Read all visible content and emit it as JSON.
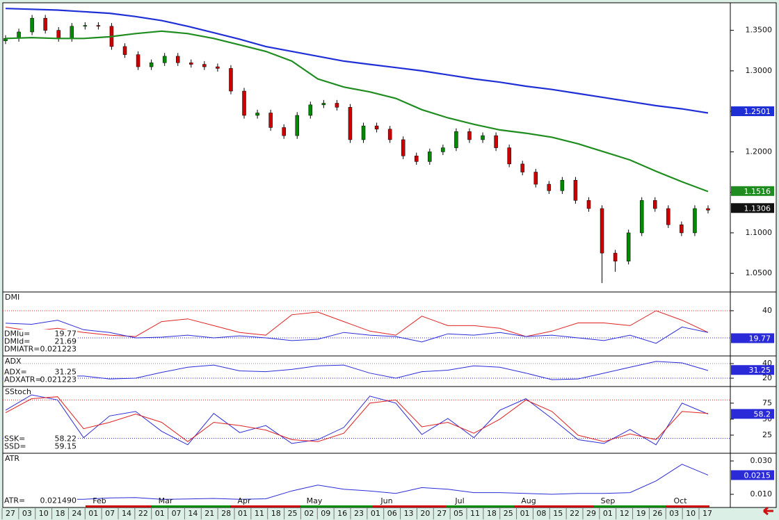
{
  "chart_data": [
    {
      "type": "candlestick",
      "open": [
        1.337,
        1.34,
        1.348,
        1.365,
        1.35,
        1.34,
        1.355,
        1.356,
        1.355,
        1.33,
        1.32,
        1.305,
        1.31,
        1.318,
        1.31,
        1.308,
        1.305,
        1.303,
        1.275,
        1.245,
        1.248,
        1.23,
        1.22,
        1.245,
        1.258,
        1.26,
        1.255,
        1.215,
        1.232,
        1.228,
        1.215,
        1.195,
        1.188,
        1.2,
        1.205,
        1.225,
        1.215,
        1.22,
        1.205,
        1.185,
        1.175,
        1.16,
        1.152,
        1.165,
        1.14,
        1.13,
        1.075,
        1.065,
        1.1,
        1.14,
        1.13,
        1.11,
        1.1,
        1.13
      ],
      "high": [
        1.344,
        1.352,
        1.369,
        1.369,
        1.354,
        1.359,
        1.36,
        1.36,
        1.359,
        1.334,
        1.324,
        1.314,
        1.322,
        1.322,
        1.314,
        1.312,
        1.309,
        1.307,
        1.279,
        1.252,
        1.252,
        1.234,
        1.249,
        1.262,
        1.264,
        1.264,
        1.259,
        1.236,
        1.236,
        1.232,
        1.219,
        1.199,
        1.204,
        1.209,
        1.229,
        1.229,
        1.224,
        1.224,
        1.209,
        1.189,
        1.179,
        1.164,
        1.169,
        1.169,
        1.144,
        1.134,
        1.079,
        1.104,
        1.144,
        1.144,
        1.134,
        1.114,
        1.134,
        1.134
      ],
      "low": [
        1.333,
        1.336,
        1.344,
        1.346,
        1.336,
        1.336,
        1.351,
        1.351,
        1.326,
        1.316,
        1.301,
        1.301,
        1.306,
        1.306,
        1.304,
        1.301,
        1.299,
        1.271,
        1.241,
        1.241,
        1.226,
        1.216,
        1.216,
        1.241,
        1.254,
        1.251,
        1.211,
        1.211,
        1.224,
        1.211,
        1.191,
        1.184,
        1.184,
        1.196,
        1.201,
        1.211,
        1.211,
        1.201,
        1.181,
        1.171,
        1.156,
        1.148,
        1.148,
        1.136,
        1.126,
        1.038,
        1.052,
        1.061,
        1.096,
        1.126,
        1.106,
        1.096,
        1.096,
        1.124
      ],
      "close": [
        1.34,
        1.348,
        1.365,
        1.35,
        1.34,
        1.355,
        1.356,
        1.355,
        1.33,
        1.32,
        1.305,
        1.31,
        1.318,
        1.31,
        1.308,
        1.305,
        1.303,
        1.275,
        1.245,
        1.248,
        1.23,
        1.22,
        1.245,
        1.258,
        1.26,
        1.255,
        1.215,
        1.232,
        1.228,
        1.215,
        1.195,
        1.188,
        1.2,
        1.205,
        1.225,
        1.215,
        1.22,
        1.205,
        1.185,
        1.175,
        1.16,
        1.152,
        1.165,
        1.14,
        1.13,
        1.075,
        1.065,
        1.1,
        1.14,
        1.13,
        1.11,
        1.1,
        1.13,
        1.128
      ],
      "up_color": "#008a00",
      "down_color": "#cc0000",
      "lines": [
        {
          "color": "#1f2fd6",
          "values": [
            1.377,
            1.376,
            1.375,
            1.373,
            1.371,
            1.367,
            1.362,
            1.355,
            1.347,
            1.339,
            1.33,
            1.324,
            1.318,
            1.312,
            1.308,
            1.304,
            1.3,
            1.295,
            1.29,
            1.286,
            1.281,
            1.277,
            1.272,
            1.267,
            1.262,
            1.257,
            1.253,
            1.248
          ]
        },
        {
          "color": "#1e8c1e",
          "values": [
            1.34,
            1.341,
            1.34,
            1.34,
            1.342,
            1.346,
            1.349,
            1.346,
            1.34,
            1.332,
            1.324,
            1.312,
            1.29,
            1.28,
            1.274,
            1.266,
            1.252,
            1.242,
            1.234,
            1.227,
            1.223,
            1.218,
            1.21,
            1.2,
            1.19,
            1.176,
            1.163,
            1.151
          ]
        }
      ],
      "markers": [
        {
          "value": 1.2501,
          "color": "#1f2fd6"
        },
        {
          "value": 1.1516,
          "color": "#1e8c1e"
        },
        {
          "value": 1.1306,
          "color": "#111111"
        }
      ],
      "ylim": [
        1.027,
        1.384
      ],
      "yticks": [
        {
          "value": 1.05,
          "label": "1.0500"
        },
        {
          "value": 1.1,
          "label": "1.1000"
        },
        {
          "value": 1.15,
          "label": "1.1500"
        },
        {
          "value": 1.2,
          "label": "1.2000"
        },
        {
          "value": 1.25,
          "label": "1.2500"
        },
        {
          "value": 1.3,
          "label": "1.3000"
        },
        {
          "value": 1.35,
          "label": "1.3500"
        }
      ]
    },
    {
      "type": "line",
      "title": "DMI",
      "series": [
        {
          "color": "#e02020",
          "values": [
            28,
            25,
            27,
            24,
            22,
            21,
            32,
            34,
            29,
            24,
            22,
            37,
            39,
            32,
            25,
            22,
            36,
            29,
            29,
            27,
            21,
            25,
            31,
            31,
            29,
            40,
            33,
            24
          ]
        },
        {
          "color": "#2a2ad8",
          "values": [
            30.8,
            30,
            33,
            26,
            24,
            20,
            20.5,
            22,
            20,
            21.5,
            20,
            18,
            19,
            24,
            22,
            21,
            17,
            23,
            22,
            24,
            21,
            22,
            20,
            18,
            22,
            16,
            28,
            24
          ]
        }
      ],
      "ylim": [
        6.7,
        53.8
      ],
      "yticks": [
        40
      ],
      "levels": [
        {
          "value": 40,
          "color": "#e02020"
        },
        {
          "value": 20,
          "color": "#2a2ad8"
        }
      ],
      "readouts": [
        {
          "name": "DMIu=",
          "value": 19.77
        },
        {
          "name": "DMId=",
          "value": 21.69
        },
        {
          "name": "DMIATR=",
          "value": 0.021223
        }
      ],
      "marker": {
        "value": 19.77,
        "color": "#2a2ad8"
      }
    },
    {
      "type": "line",
      "title": "ADX",
      "series": [
        {
          "color": "#2a2ad8",
          "values": [
            24,
            24,
            23,
            23,
            19,
            20,
            28,
            35,
            38,
            30,
            29,
            32,
            37,
            38,
            27,
            20,
            29,
            31,
            37,
            35,
            27,
            18,
            19,
            27,
            35,
            43,
            41,
            30.5
          ]
        }
      ],
      "ylim": [
        8.6,
        50.5
      ],
      "yticks": [
        20,
        40
      ],
      "levels": [
        {
          "value": 40,
          "color": "#888888"
        },
        {
          "value": 20,
          "color": "#2a2ad8"
        }
      ],
      "readouts": [
        {
          "name": "ADX=",
          "value": 31.25
        },
        {
          "name": "ADXATR=",
          "value": 0.021223
        }
      ],
      "marker": {
        "value": 31.25,
        "color": "#2a2ad8"
      }
    },
    {
      "type": "line",
      "title": "SStoch",
      "series": [
        {
          "color": "#2a2ad8",
          "values": [
            64,
            88,
            80,
            21,
            55,
            62,
            31,
            10,
            59,
            29,
            40,
            12,
            18,
            37,
            86,
            75,
            26,
            51,
            21,
            64,
            82,
            51,
            18,
            12,
            34,
            10,
            75,
            58
          ]
        },
        {
          "color": "#e02020",
          "values": [
            60,
            82,
            85,
            35,
            45,
            58,
            45,
            15,
            45,
            40,
            33,
            18,
            15,
            28,
            75,
            80,
            38,
            45,
            28,
            50,
            80,
            62,
            25,
            15,
            27,
            18,
            62,
            59
          ]
        }
      ],
      "ylim": [
        -3.3,
        101
      ],
      "yticks": [
        25,
        50,
        75
      ],
      "levels": [
        {
          "value": 80,
          "color": "#e02020"
        },
        {
          "value": 20,
          "color": "#2a2ad8"
        }
      ],
      "readouts": [
        {
          "name": "SSK=",
          "value": 58.22
        },
        {
          "name": "SSD=",
          "value": 59.15
        }
      ],
      "marker": {
        "value": 58.2,
        "color": "#2a2ad8"
      }
    },
    {
      "type": "line",
      "title": "ATR",
      "series": [
        {
          "color": "#2a2ad8",
          "values": [
            0.0075,
            0.0075,
            0.007,
            0.007,
            0.0078,
            0.008,
            0.007,
            0.0072,
            0.0075,
            0.007,
            0.0073,
            0.012,
            0.0155,
            0.013,
            0.012,
            0.0105,
            0.014,
            0.013,
            0.011,
            0.011,
            0.0105,
            0.01,
            0.0105,
            0.0105,
            0.011,
            0.018,
            0.028,
            0.0215
          ]
        }
      ],
      "ylim": [
        0.0021,
        0.0346
      ],
      "yticks": [
        {
          "value": 0.01,
          "label": "0.010"
        },
        {
          "value": 0.03,
          "label": "0.030"
        }
      ],
      "levels": [],
      "readouts": [
        {
          "name": "ATR=",
          "value": 0.02149,
          "label": "0.021490"
        }
      ],
      "marker": {
        "value": 0.0215,
        "color": "#2a2ad8"
      }
    }
  ],
  "time_axis": {
    "days": [
      "27",
      "03",
      "10",
      "18",
      "24",
      "01",
      "07",
      "14",
      "22",
      "01",
      "07",
      "14",
      "21",
      "28",
      "01",
      "11",
      "18",
      "25",
      "02",
      "09",
      "16",
      "23",
      "01",
      "06",
      "13",
      "20",
      "27",
      "05",
      "11",
      "18",
      "25",
      "01",
      "08",
      "15",
      "22",
      "29",
      "01",
      "12",
      "19",
      "26",
      "03",
      "10",
      "17"
    ],
    "months": [
      "Feb",
      "Mar",
      "Apr",
      "May",
      "Jun",
      "Jul",
      "Aug",
      "Sep",
      "Oct"
    ]
  }
}
